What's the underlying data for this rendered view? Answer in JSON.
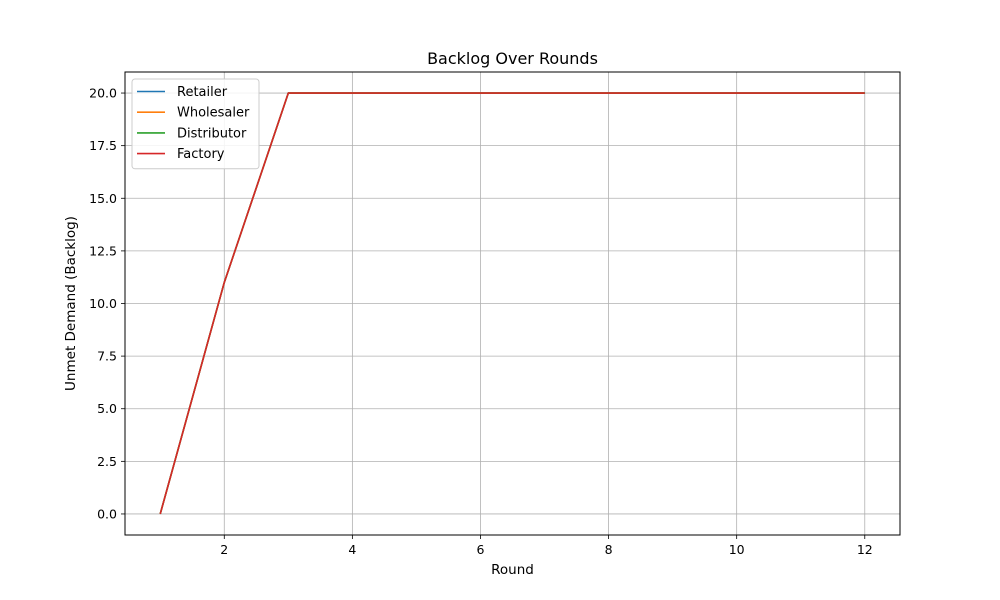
{
  "chart_data": {
    "type": "line",
    "title": "Backlog Over Rounds",
    "xlabel": "Round",
    "ylabel": "Unmet Demand (Backlog)",
    "xlim": [
      0.45,
      12.55
    ],
    "ylim": [
      -1.0,
      21.0
    ],
    "xticks": [
      2,
      4,
      6,
      8,
      10,
      12
    ],
    "xtick_labels": [
      "2",
      "4",
      "6",
      "8",
      "10",
      "12"
    ],
    "yticks": [
      0.0,
      2.5,
      5.0,
      7.5,
      10.0,
      12.5,
      15.0,
      17.5,
      20.0
    ],
    "ytick_labels": [
      "0.0",
      "2.5",
      "5.0",
      "7.5",
      "10.0",
      "12.5",
      "15.0",
      "17.5",
      "20.0"
    ],
    "grid": true,
    "legend_position": "top-left",
    "x": [
      1,
      2,
      3,
      4,
      5,
      6,
      7,
      8,
      9,
      10,
      11,
      12
    ],
    "series": [
      {
        "name": "Retailer",
        "color": "#1f77b4",
        "values": [
          0,
          11,
          20,
          20,
          20,
          20,
          20,
          20,
          20,
          20,
          20,
          20
        ]
      },
      {
        "name": "Wholesaler",
        "color": "#ff7f0e",
        "values": [
          0,
          11,
          20,
          20,
          20,
          20,
          20,
          20,
          20,
          20,
          20,
          20
        ]
      },
      {
        "name": "Distributor",
        "color": "#2ca02c",
        "values": [
          0,
          11,
          20,
          20,
          20,
          20,
          20,
          20,
          20,
          20,
          20,
          20
        ]
      },
      {
        "name": "Factory",
        "color": "#d62728",
        "values": [
          0,
          11,
          20,
          20,
          20,
          20,
          20,
          20,
          20,
          20,
          20,
          20
        ]
      }
    ]
  }
}
